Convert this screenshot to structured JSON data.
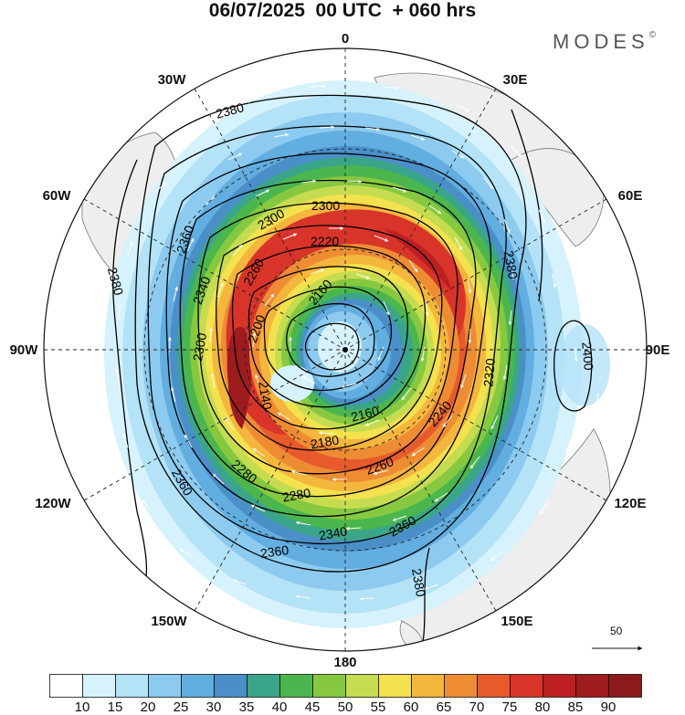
{
  "title": "06/07/2025  00 UTC  + 060 hrs",
  "brand": "MODES",
  "brand_mark": "©",
  "longitude_labels": {
    "lon_0": "0",
    "lon_30e": "30E",
    "lon_60e": "60E",
    "lon_90e": "90E",
    "lon_120e": "120E",
    "lon_150e": "150E",
    "lon_180": "180",
    "lon_150w": "150W",
    "lon_120w": "120W",
    "lon_90w": "90W",
    "lon_60w": "60W",
    "lon_30w": "30W"
  },
  "contour_labels": {
    "c2380_a": "2380",
    "c2380_b": "2380",
    "c2380_c": "2380",
    "c2380_d": "2380",
    "c2360_a": "2360",
    "c2360_b": "2360",
    "c2360_c": "2360",
    "c2360_d": "2360",
    "c2340_a": "2340",
    "c2340_b": "2340",
    "c2320": "2320",
    "c2300_a": "2300",
    "c2300_b": "2300",
    "c2300_c": "2300",
    "c2280_a": "2280",
    "c2280_b": "2280",
    "c2260_a": "2260",
    "c2260_b": "2260",
    "c2240": "2240",
    "c2220": "2220",
    "c2200": "2200",
    "c2180": "2180",
    "c2160_a": "2160",
    "c2160_b": "2160",
    "c2140": "2140",
    "c2400": "2400"
  },
  "reference_vector": "50",
  "colorbar": {
    "labels": [
      "10",
      "15",
      "20",
      "25",
      "30",
      "35",
      "40",
      "45",
      "50",
      "55",
      "60",
      "65",
      "70",
      "75",
      "80",
      "85",
      "90"
    ],
    "colors": [
      "#ffffff",
      "#d6f2fc",
      "#b4e2f7",
      "#8ccbef",
      "#62aee0",
      "#4a8fc8",
      "#3ba58a",
      "#4bb64d",
      "#86c940",
      "#c6dc50",
      "#f3e14e",
      "#f4b63c",
      "#ee8c34",
      "#e65a2c",
      "#d9342a",
      "#be1f22",
      "#9e1b1e",
      "#8a1a1c"
    ]
  },
  "field_colors": {
    "land": "#eeeeee",
    "coast": "#777777",
    "grid": "#222222",
    "contour": "#000000",
    "wind_vector": "#ffffff"
  }
}
